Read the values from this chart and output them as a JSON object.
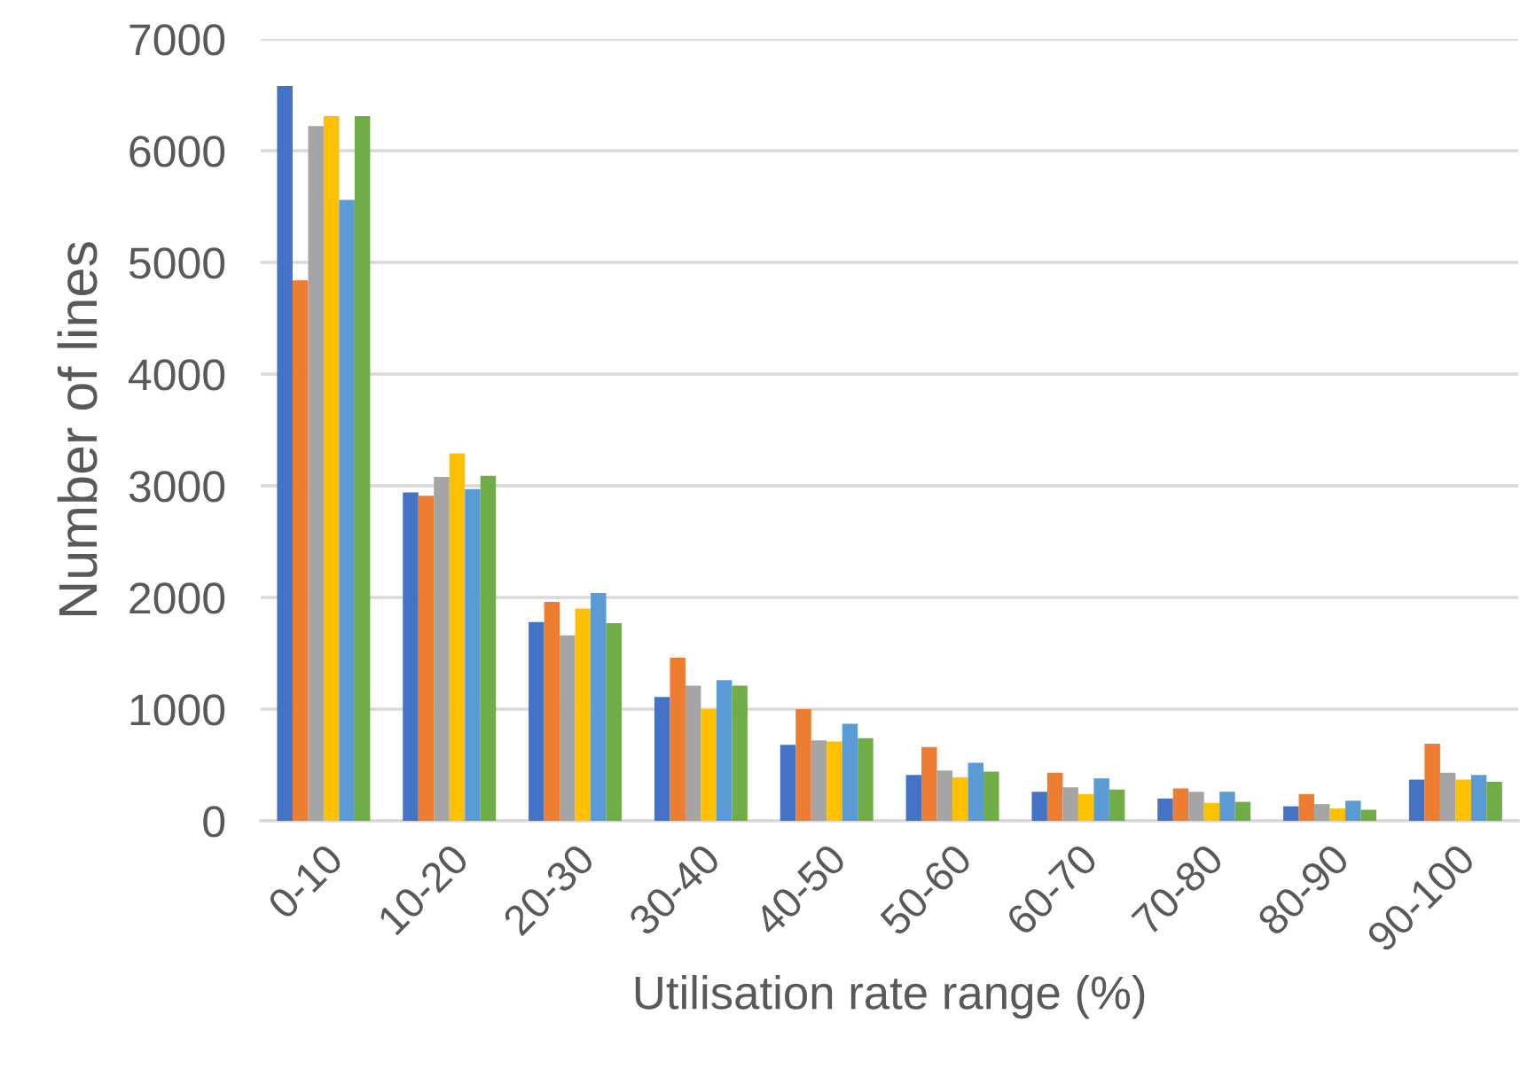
{
  "chart_data": {
    "type": "bar",
    "xlabel": "Utilisation rate range (%)",
    "ylabel": "Number of lines",
    "categories": [
      "0-10",
      "10-20",
      "20-30",
      "30-40",
      "40-50",
      "50-60",
      "60-70",
      "70-80",
      "80-90",
      "90-100"
    ],
    "series": [
      {
        "color": "#4472c4",
        "values": [
          6580,
          2940,
          1780,
          1110,
          680,
          410,
          260,
          200,
          130,
          370
        ]
      },
      {
        "color": "#ed7d31",
        "values": [
          4840,
          2910,
          1960,
          1460,
          1000,
          660,
          430,
          290,
          240,
          690
        ]
      },
      {
        "color": "#a5a5a5",
        "values": [
          6220,
          3080,
          1660,
          1210,
          720,
          450,
          300,
          260,
          150,
          430
        ]
      },
      {
        "color": "#ffc000",
        "values": [
          6310,
          3290,
          1900,
          1000,
          710,
          390,
          240,
          160,
          110,
          370
        ]
      },
      {
        "color": "#5b9bd5",
        "values": [
          5560,
          2970,
          2040,
          1260,
          870,
          520,
          380,
          260,
          180,
          410
        ]
      },
      {
        "color": "#70ad47",
        "values": [
          6310,
          3090,
          1770,
          1210,
          740,
          440,
          280,
          170,
          100,
          350
        ]
      }
    ],
    "ylim": [
      0,
      7000
    ],
    "yticks": [
      0,
      1000,
      2000,
      3000,
      4000,
      5000,
      6000,
      7000
    ],
    "grid": "y",
    "legend": false
  }
}
